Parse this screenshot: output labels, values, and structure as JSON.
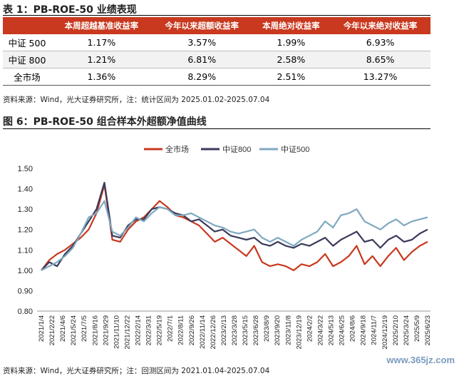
{
  "table_title": "表 1：PB-ROE-50 业绩表现",
  "table": {
    "headers": [
      "",
      "本周超越基准收益率",
      "今年以来超额收益率",
      "本周绝对收益率",
      "今年以来绝对收益率"
    ],
    "rows": [
      [
        "中证 500",
        "1.17%",
        "3.57%",
        "1.99%",
        "6.93%"
      ],
      [
        "中证 800",
        "1.21%",
        "6.81%",
        "2.58%",
        "8.65%"
      ],
      [
        "全市场",
        "1.36%",
        "8.29%",
        "2.51%",
        "13.27%"
      ]
    ]
  },
  "table_source": "资料来源：Wind，光大证券研究所，注：统计区间为 2025.01.02-2025.07.04",
  "chart_title": "图 6：PB-ROE-50 组合样本外超额净值曲线",
  "chart_source": "资料来源：Wind，光大证券研究所；注：回测区间为 2021.01.04-2025.07.04",
  "watermark": "www.365jz.com",
  "colors": {
    "header_bg": "#c8391f",
    "quanshichang": "#c8391f",
    "zz800": "#3a3a5c",
    "zz500": "#7fa9c0"
  },
  "chart_data": {
    "type": "line",
    "title": "",
    "xlabel": "",
    "ylabel": "",
    "ylim": [
      0.8,
      1.5
    ],
    "yticks": [
      "0.80",
      "0.90",
      "1.00",
      "1.10",
      "1.20",
      "1.30",
      "1.40",
      "1.50"
    ],
    "x_tick_labels": [
      "2021/1/4",
      "2021/2/22",
      "2021/4/6",
      "2021/5/24",
      "2021/7/5",
      "2021/8/16",
      "2021/9/29",
      "2021/11/10",
      "2021/12/22",
      "2022/2/14",
      "2022/3/31",
      "2022/5/19",
      "2022/7/1",
      "2022/8/11",
      "2022/9/26",
      "2022/11/14",
      "2022/12/26",
      "2023/2/13",
      "2023/3/28",
      "2023/5/15",
      "2023/6/28",
      "2023/8/9",
      "2023/9/20",
      "2023/11/8",
      "2023/12/19",
      "2024/2/2",
      "2024/3/22",
      "2024/5/13",
      "2024/6/25",
      "2024/8/6",
      "2024/9/18",
      "2024/11/7",
      "2024/12/19",
      "2025/2/10",
      "2025/3/24",
      "2025/5/9",
      "2025/6/23"
    ],
    "legend_position": "top",
    "grid": false,
    "series": [
      {
        "name": "全市场",
        "color": "#c8391f",
        "values": [
          1.0,
          1.05,
          1.08,
          1.1,
          1.13,
          1.16,
          1.2,
          1.28,
          1.42,
          1.15,
          1.14,
          1.2,
          1.24,
          1.26,
          1.3,
          1.34,
          1.31,
          1.27,
          1.26,
          1.24,
          1.22,
          1.18,
          1.14,
          1.16,
          1.13,
          1.1,
          1.07,
          1.12,
          1.04,
          1.02,
          1.03,
          1.02,
          1.0,
          1.03,
          1.02,
          1.04,
          1.08,
          1.02,
          1.04,
          1.07,
          1.12,
          1.03,
          1.07,
          1.02,
          1.07,
          1.11,
          1.05,
          1.09,
          1.12,
          1.14
        ]
      },
      {
        "name": "中证800",
        "color": "#3a3a5c",
        "values": [
          1.0,
          1.04,
          1.02,
          1.08,
          1.12,
          1.18,
          1.24,
          1.3,
          1.43,
          1.17,
          1.16,
          1.22,
          1.25,
          1.25,
          1.3,
          1.31,
          1.3,
          1.28,
          1.27,
          1.24,
          1.25,
          1.22,
          1.19,
          1.2,
          1.17,
          1.16,
          1.15,
          1.16,
          1.13,
          1.12,
          1.14,
          1.12,
          1.11,
          1.13,
          1.12,
          1.14,
          1.16,
          1.12,
          1.15,
          1.17,
          1.19,
          1.14,
          1.15,
          1.11,
          1.15,
          1.17,
          1.14,
          1.15,
          1.18,
          1.2
        ]
      },
      {
        "name": "中证500",
        "color": "#7fa9c0",
        "values": [
          1.0,
          1.02,
          1.04,
          1.07,
          1.11,
          1.18,
          1.26,
          1.28,
          1.34,
          1.19,
          1.17,
          1.21,
          1.26,
          1.24,
          1.28,
          1.31,
          1.3,
          1.27,
          1.27,
          1.28,
          1.26,
          1.24,
          1.22,
          1.21,
          1.19,
          1.18,
          1.19,
          1.2,
          1.16,
          1.14,
          1.16,
          1.14,
          1.12,
          1.15,
          1.17,
          1.19,
          1.24,
          1.21,
          1.27,
          1.28,
          1.3,
          1.24,
          1.22,
          1.2,
          1.23,
          1.25,
          1.22,
          1.24,
          1.25,
          1.26
        ]
      }
    ]
  }
}
